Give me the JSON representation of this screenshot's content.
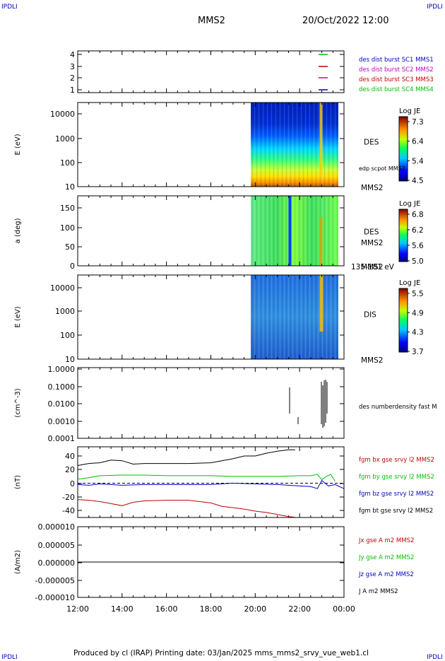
{
  "header": {
    "corner_tag": "IPDLI",
    "spacecraft": "MMS2",
    "datetime": "20/Oct/2022 12:00"
  },
  "footer": {
    "text": "Produced by cl (IRAP)   Printing date: 03/Jan/2025   mms_mms2_srvy_vue_web1.cl"
  },
  "chart_data": [
    {
      "type": "line",
      "panel": "burst-availability",
      "y_ticks": [
        "4",
        "3",
        "2",
        "1"
      ],
      "legend": [
        {
          "label": "des dist burst SC1 MMS1",
          "color": "#0000c0"
        },
        {
          "label": "des dist burst SC2 MMS2",
          "color": "#c000c0"
        },
        {
          "label": "des dist burst SC3 MMS3",
          "color": "#c00000"
        },
        {
          "label": "des dist burst SC4 MMS4",
          "color": "#00c000"
        }
      ],
      "markers": [
        {
          "level": 4,
          "color": "#00c000"
        },
        {
          "level": 3,
          "color": "#c00000"
        },
        {
          "level": 2,
          "color": "#c000c0"
        },
        {
          "level": 1,
          "color": "#0000c0"
        }
      ]
    },
    {
      "type": "heatmap",
      "panel": "des-energy",
      "ylabel": "E (eV)",
      "yscale": "log",
      "y_ticks": [
        "10000",
        "1000",
        "100",
        "10"
      ],
      "label": "DES",
      "overlay": "edp scpot MMS2",
      "spacecraft": "MMS2",
      "colorbar": {
        "title": "Log JE",
        "ticks": [
          "7.3",
          "6.4",
          "5.4",
          "4.5"
        ]
      },
      "data_start_hour": 19.8
    },
    {
      "type": "heatmap",
      "panel": "des-pitch-angle",
      "ylabel": "a (deg)",
      "y_ticks": [
        "150",
        "100",
        "50",
        "0"
      ],
      "label": "DES",
      "spacecraft": "MMS2",
      "energy_band": "135-181 eV",
      "colorbar": {
        "title": "Log JE",
        "ticks": [
          "6.8",
          "6.2",
          "5.6",
          "5.0"
        ]
      },
      "data_start_hour": 19.8
    },
    {
      "type": "heatmap",
      "panel": "dis-energy",
      "ylabel": "E (eV)",
      "yscale": "log",
      "y_ticks": [
        "10000",
        "1000",
        "100",
        "10"
      ],
      "label": "DIS",
      "spacecraft": "MMS2",
      "colorbar": {
        "title": "Log JE",
        "ticks": [
          "5.5",
          "4.9",
          "4.3",
          "3.7"
        ]
      },
      "data_start_hour": 19.8
    },
    {
      "type": "line",
      "panel": "density",
      "ylabel": "(cm^-3)",
      "yscale": "log",
      "y_ticks": [
        "1.0000",
        "0.1000",
        "0.0100",
        "0.0010",
        "0.0001"
      ],
      "legend": [
        {
          "label": "des numberdensity fast M",
          "color": "#000000"
        }
      ]
    },
    {
      "type": "line",
      "panel": "magnetic-field",
      "ylabel": "(nT)",
      "y_ticks": [
        "40",
        "20",
        "0",
        "-20",
        "-40"
      ],
      "ylim": [
        -50,
        50
      ],
      "legend": [
        {
          "label": "fgm bx gse srvy l2 MMS2",
          "color": "#c00000"
        },
        {
          "label": "fgm by gse srvy l2 MMS2",
          "color": "#00c000"
        },
        {
          "label": "fgm bz gse srvy l2 MMS2",
          "color": "#0000c0"
        },
        {
          "label": "fgm bt gse srvy l2 MMS2",
          "color": "#000000"
        }
      ],
      "series": [
        {
          "color": "#000000",
          "x": [
            12,
            12.5,
            13,
            13.5,
            14,
            14.5,
            15,
            16,
            17,
            18,
            19,
            19.5,
            20,
            20.5,
            21,
            21.5,
            21.8
          ],
          "y": [
            26,
            29,
            30,
            34,
            33,
            28,
            29,
            29,
            29,
            30,
            36,
            40,
            40,
            44,
            47,
            49,
            49
          ]
        },
        {
          "color": "#00c000",
          "x": [
            12,
            12.5,
            13,
            14,
            15,
            16,
            17,
            18,
            19,
            20,
            21,
            22,
            22.5,
            22.8,
            23,
            23.2,
            23.4,
            23.6
          ],
          "y": [
            6,
            8,
            11,
            12,
            12,
            11,
            11,
            11,
            10,
            10,
            10,
            11,
            11,
            13,
            5,
            10,
            13,
            3
          ]
        },
        {
          "color": "#0000c0",
          "x": [
            12,
            12.5,
            13,
            14,
            15,
            16,
            17,
            18,
            19,
            20,
            21,
            22,
            22.5,
            22.8,
            23,
            23.3,
            23.6,
            24
          ],
          "y": [
            -2,
            -3,
            -1,
            -3,
            -2,
            -2,
            -2,
            -2,
            0,
            -1,
            -2,
            -4,
            -5,
            -8,
            4,
            -4,
            -2,
            -8
          ]
        },
        {
          "color": "#c00000",
          "x": [
            12,
            12.5,
            13,
            13.5,
            14,
            14.5,
            15,
            16,
            17,
            17.5,
            18,
            18.5,
            19,
            19.5,
            20,
            20.5,
            21,
            21.5,
            21.8
          ],
          "y": [
            -24,
            -25,
            -27,
            -30,
            -33,
            -28,
            -26,
            -25,
            -25,
            -27,
            -29,
            -34,
            -36,
            -38,
            -41,
            -43,
            -46,
            -49,
            -50
          ]
        }
      ]
    },
    {
      "type": "line",
      "panel": "current-density",
      "ylabel": "(A/m2)",
      "y_ticks": [
        "0.000010",
        "0.000005",
        "0.000000",
        "-0.000005",
        "-0.000010"
      ],
      "ylim": [
        -1e-05,
        1e-05
      ],
      "legend": [
        {
          "label": "Jx gse A m2 MMS2",
          "color": "#c00000"
        },
        {
          "label": "Jy gse A m2 MMS2",
          "color": "#00c000"
        },
        {
          "label": "Jz gse A m2 MMS2",
          "color": "#0000c0"
        },
        {
          "label": "J A m2 MMS2",
          "color": "#000000"
        }
      ],
      "series": [
        {
          "color": "#000000",
          "x": [
            12,
            24
          ],
          "y": [
            0,
            0
          ]
        }
      ]
    }
  ],
  "x_axis": {
    "ticks": [
      "12:00",
      "14:00",
      "16:00",
      "18:00",
      "20:00",
      "22:00",
      "00:00"
    ]
  }
}
